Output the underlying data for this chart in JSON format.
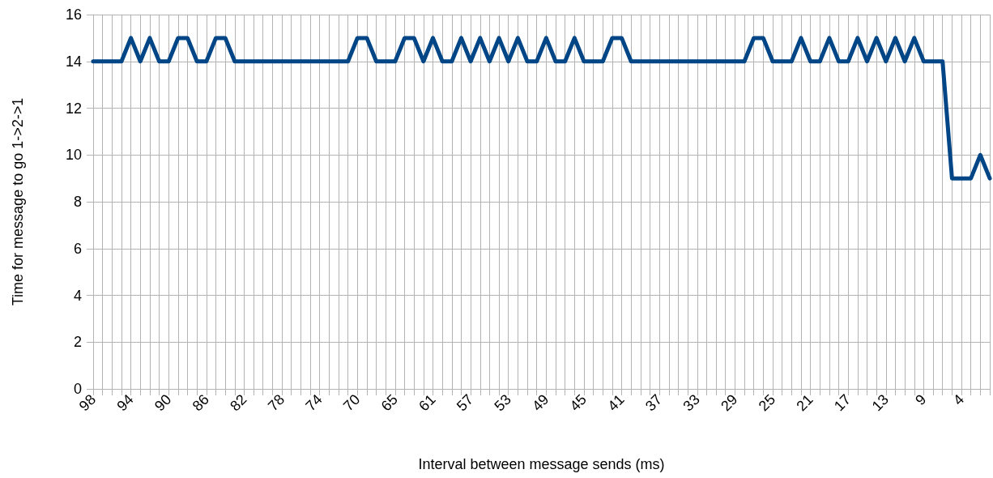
{
  "chart_data": {
    "type": "line",
    "xlabel": "Interval between message sends (ms)",
    "ylabel": "Time for message to go 1->2->1",
    "categories": [
      "98",
      null,
      null,
      null,
      "94",
      null,
      null,
      null,
      "90",
      null,
      null,
      null,
      "86",
      null,
      null,
      null,
      "82",
      null,
      null,
      null,
      "78",
      null,
      null,
      null,
      "74",
      null,
      null,
      null,
      "70",
      null,
      null,
      null,
      "65",
      null,
      null,
      null,
      "61",
      null,
      null,
      null,
      "57",
      null,
      null,
      null,
      "53",
      null,
      null,
      null,
      "49",
      null,
      null,
      null,
      "45",
      null,
      null,
      null,
      "41",
      null,
      null,
      null,
      "37",
      null,
      null,
      null,
      "33",
      null,
      null,
      null,
      "29",
      null,
      null,
      null,
      "25",
      null,
      null,
      null,
      "21",
      null,
      null,
      null,
      "17",
      null,
      null,
      null,
      "13",
      null,
      null,
      null,
      "9",
      null,
      null,
      null,
      "4",
      null,
      null,
      null
    ],
    "series": [
      {
        "color": "#004586",
        "values": [
          14,
          14,
          14,
          14,
          15,
          14,
          15,
          14,
          14,
          15,
          15,
          14,
          14,
          15,
          15,
          14,
          14,
          14,
          14,
          14,
          14,
          14,
          14,
          14,
          14,
          14,
          14,
          14,
          15,
          15,
          14,
          14,
          14,
          15,
          15,
          14,
          15,
          14,
          14,
          15,
          14,
          15,
          14,
          15,
          14,
          15,
          14,
          14,
          15,
          14,
          14,
          15,
          14,
          14,
          14,
          15,
          15,
          14,
          14,
          14,
          14,
          14,
          14,
          14,
          14,
          14,
          14,
          14,
          14,
          14,
          15,
          15,
          14,
          14,
          14,
          15,
          14,
          14,
          15,
          14,
          14,
          15,
          14,
          15,
          14,
          15,
          14,
          15,
          14,
          14,
          14,
          9,
          9,
          9,
          10,
          9
        ]
      }
    ],
    "ylim": [
      0,
      16
    ],
    "yticks": [
      0,
      2,
      4,
      6,
      8,
      10,
      12,
      14,
      16
    ],
    "grid": true,
    "marker": "none",
    "line_style": "solid"
  }
}
